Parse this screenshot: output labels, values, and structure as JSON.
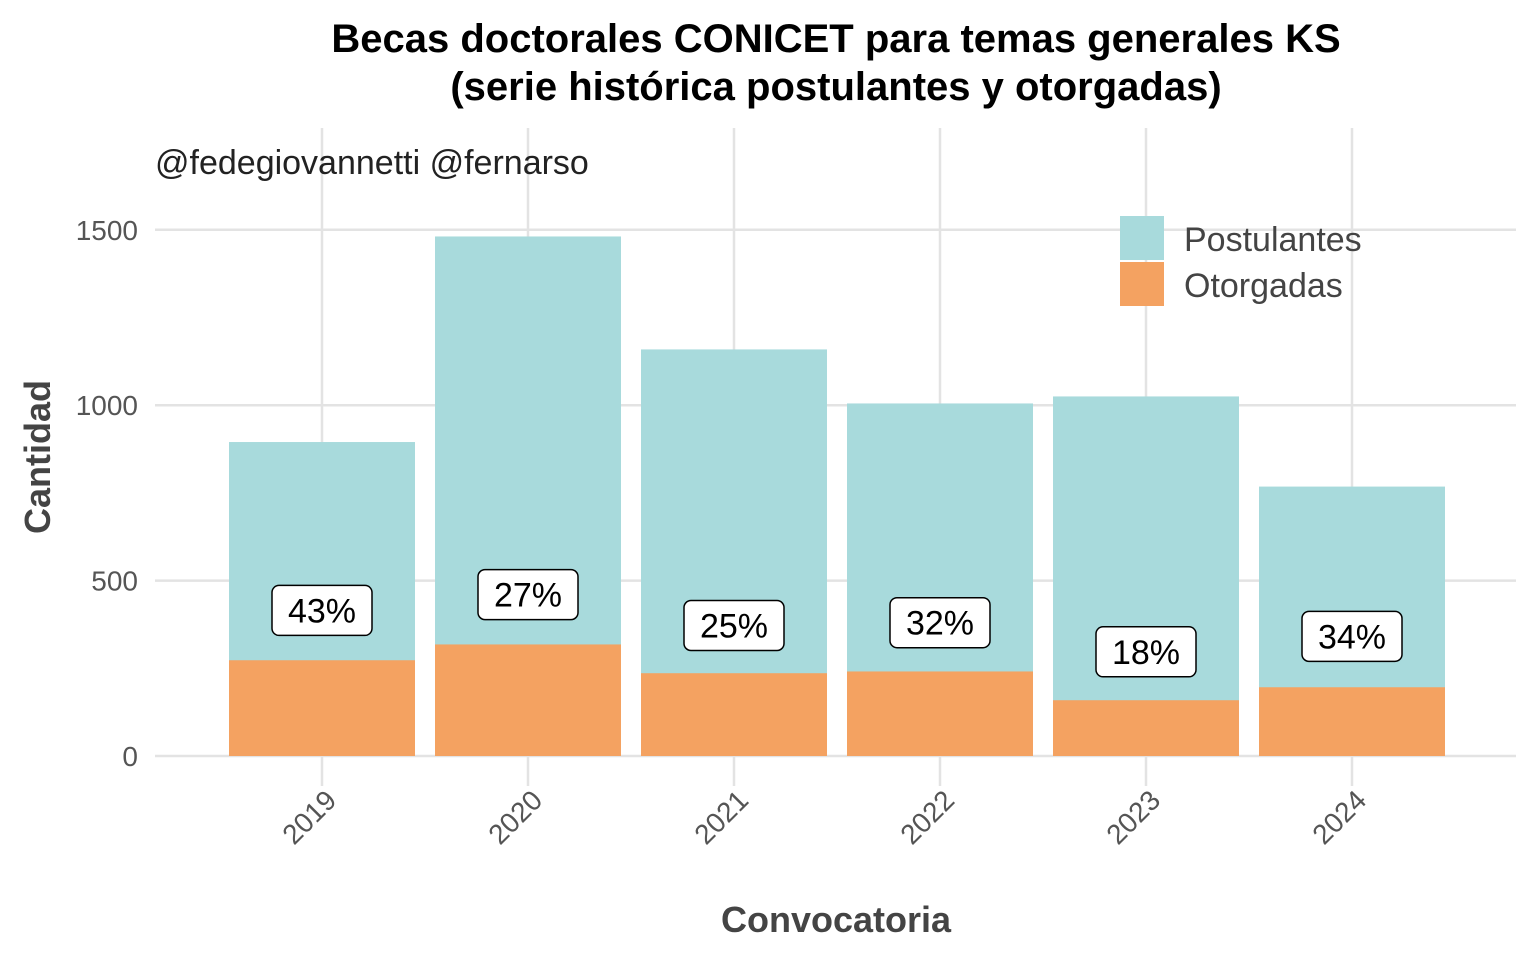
{
  "chart_data": {
    "type": "bar",
    "stacked": false,
    "title": "Becas doctorales CONICET para temas generales KS",
    "subtitle": "(serie histórica postulantes y otorgadas)",
    "caption": "@fedegiovannetti @fernarso",
    "xlabel": "Convocatoria",
    "ylabel": "Cantidad",
    "categories": [
      "2019",
      "2020",
      "2021",
      "2022",
      "2023",
      "2024"
    ],
    "series": [
      {
        "name": "Postulantes",
        "color": "#a8dadc",
        "values": [
          895,
          1481,
          1159,
          1005,
          1025,
          768
        ]
      },
      {
        "name": "Otorgadas",
        "color": "#f4a261",
        "values": [
          273,
          318,
          236,
          241,
          159,
          196
        ]
      }
    ],
    "data_labels": [
      "43%",
      "27%",
      "25%",
      "32%",
      "18%",
      "34%"
    ],
    "label_values": [
      415,
      460,
      372,
      380,
      297,
      341
    ],
    "y_ticks": [
      0,
      500,
      1000,
      1500
    ],
    "ylim": [
      0,
      1780
    ],
    "grid": true,
    "legend_position": "top-right"
  }
}
